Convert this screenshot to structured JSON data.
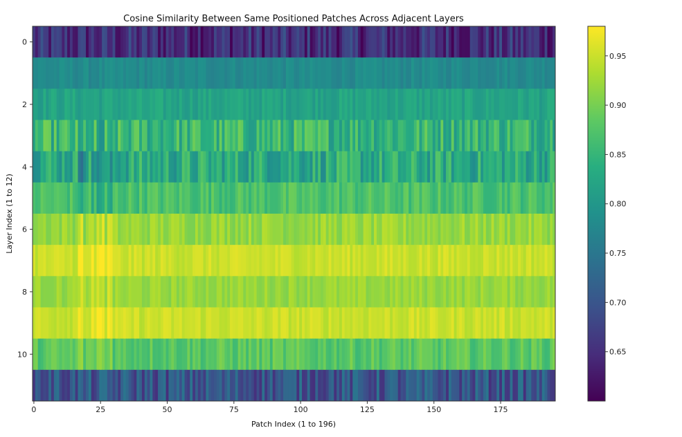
{
  "chart_data": {
    "type": "heatmap",
    "title": "Cosine Similarity Between Same Positioned Patches Across Adjacent Layers",
    "xlabel": "Patch Index (1 to 196)",
    "ylabel": "Layer Index (1 to 12)",
    "n_cols": 196,
    "n_rows": 12,
    "x_ticks": [
      0,
      25,
      50,
      75,
      100,
      125,
      150,
      175
    ],
    "y_ticks": [
      0,
      2,
      4,
      6,
      8,
      10
    ],
    "colorscale": "viridis",
    "colorbar": {
      "min": 0.6,
      "max": 0.98,
      "ticks": [
        0.65,
        0.7,
        0.75,
        0.8,
        0.85,
        0.9,
        0.95
      ]
    },
    "row_mean_values": [
      0.65,
      0.78,
      0.82,
      0.85,
      0.83,
      0.87,
      0.92,
      0.95,
      0.92,
      0.95,
      0.88,
      0.7
    ],
    "row_variation": [
      0.05,
      0.015,
      0.02,
      0.05,
      0.05,
      0.025,
      0.02,
      0.015,
      0.015,
      0.015,
      0.025,
      0.05
    ],
    "highlight_columns": [
      17,
      18,
      22,
      24,
      25,
      26,
      28,
      29
    ]
  }
}
